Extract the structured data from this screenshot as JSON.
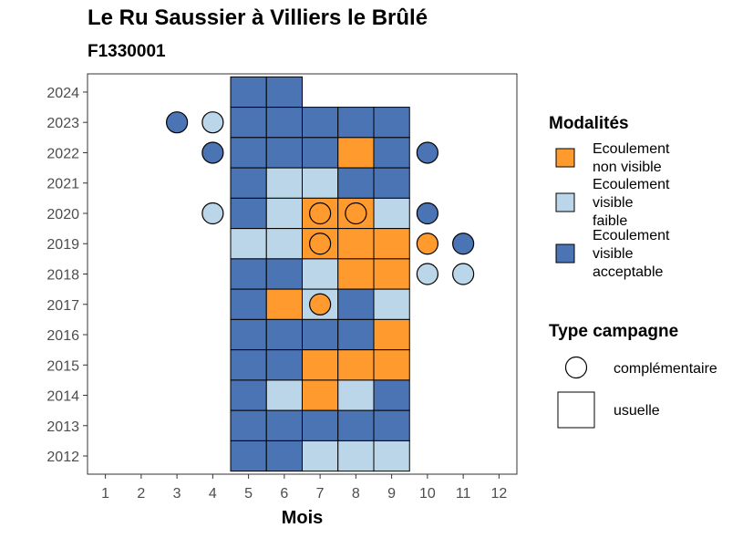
{
  "title": "Le Ru Saussier à Villiers le Brûlé",
  "subtitle": "F1330001",
  "chart_data": {
    "type": "heatmap",
    "title": "Le Ru Saussier à Villiers le Brûlé",
    "subtitle": "F1330001",
    "xlabel": "Mois",
    "ylabel": "",
    "x_ticks": [
      1,
      2,
      3,
      4,
      5,
      6,
      7,
      8,
      9,
      10,
      11,
      12
    ],
    "y_ticks": [
      2012,
      2013,
      2014,
      2015,
      2016,
      2017,
      2018,
      2019,
      2020,
      2021,
      2022,
      2023,
      2024
    ],
    "xlim": [
      0.5,
      12.5
    ],
    "ylim": [
      2011.4,
      2024.6
    ],
    "grid": false,
    "legend_position": "right",
    "colors": {
      "Ecoulement non visible": "#FF9A2E",
      "Ecoulement visible faible": "#BAD6E8",
      "Ecoulement visible acceptable": "#4A74B4"
    },
    "legends": [
      {
        "title": "Modalités",
        "entries": [
          {
            "label": "Ecoulement\nnon visible",
            "value": "Ecoulement non visible",
            "color": "#FF9A2E"
          },
          {
            "label": "Ecoulement\nvisible\nfaible",
            "value": "Ecoulement visible faible",
            "color": "#BAD6E8"
          },
          {
            "label": "Ecoulement\nvisible\nacceptable",
            "value": "Ecoulement visible acceptable",
            "color": "#4A74B4"
          }
        ]
      },
      {
        "title": "Type campagne",
        "entries": [
          {
            "label": "complémentaire",
            "shape": "circle"
          },
          {
            "label": "usuelle",
            "shape": "square"
          }
        ]
      }
    ],
    "usuelle": [
      {
        "year": 2024,
        "months": [
          5,
          6
        ],
        "values": [
          "acc",
          "acc"
        ]
      },
      {
        "year": 2023,
        "months": [
          5,
          6,
          7,
          8,
          9
        ],
        "values": [
          "acc",
          "acc",
          "acc",
          "acc",
          "acc"
        ]
      },
      {
        "year": 2022,
        "months": [
          5,
          6,
          7,
          8,
          9
        ],
        "values": [
          "acc",
          "acc",
          "acc",
          "nv",
          "acc"
        ]
      },
      {
        "year": 2021,
        "months": [
          5,
          6,
          7,
          8,
          9
        ],
        "values": [
          "acc",
          "fai",
          "fai",
          "acc",
          "acc"
        ]
      },
      {
        "year": 2020,
        "months": [
          5,
          6,
          7,
          8,
          9
        ],
        "values": [
          "acc",
          "fai",
          "nv",
          "nv",
          "fai"
        ]
      },
      {
        "year": 2019,
        "months": [
          5,
          6,
          7,
          8,
          9
        ],
        "values": [
          "fai",
          "fai",
          "nv",
          "nv",
          "nv"
        ]
      },
      {
        "year": 2018,
        "months": [
          5,
          6,
          7,
          8,
          9
        ],
        "values": [
          "acc",
          "acc",
          "fai",
          "nv",
          "nv"
        ]
      },
      {
        "year": 2017,
        "months": [
          5,
          6,
          7,
          8,
          9
        ],
        "values": [
          "acc",
          "nv",
          "fai",
          "acc",
          "fai"
        ]
      },
      {
        "year": 2016,
        "months": [
          5,
          6,
          7,
          8,
          9
        ],
        "values": [
          "acc",
          "acc",
          "acc",
          "acc",
          "nv"
        ]
      },
      {
        "year": 2015,
        "months": [
          5,
          6,
          7,
          8,
          9
        ],
        "values": [
          "acc",
          "acc",
          "nv",
          "nv",
          "nv"
        ]
      },
      {
        "year": 2014,
        "months": [
          5,
          6,
          7,
          8,
          9
        ],
        "values": [
          "acc",
          "fai",
          "nv",
          "fai",
          "acc"
        ]
      },
      {
        "year": 2013,
        "months": [
          5,
          6,
          7,
          8,
          9
        ],
        "values": [
          "acc",
          "acc",
          "acc",
          "acc",
          "acc"
        ]
      },
      {
        "year": 2012,
        "months": [
          5,
          6,
          7,
          8,
          9
        ],
        "values": [
          "acc",
          "acc",
          "fai",
          "fai",
          "fai"
        ]
      }
    ],
    "complementaire": [
      {
        "year": 2023,
        "month": 3,
        "value": "acc"
      },
      {
        "year": 2023,
        "month": 4,
        "value": "fai"
      },
      {
        "year": 2022,
        "month": 4,
        "value": "acc"
      },
      {
        "year": 2022,
        "month": 10,
        "value": "acc"
      },
      {
        "year": 2020,
        "month": 4,
        "value": "fai"
      },
      {
        "year": 2020,
        "month": 7,
        "value": "nv"
      },
      {
        "year": 2020,
        "month": 8,
        "value": "nv"
      },
      {
        "year": 2020,
        "month": 10,
        "value": "acc"
      },
      {
        "year": 2019,
        "month": 7,
        "value": "nv"
      },
      {
        "year": 2019,
        "month": 10,
        "value": "nv"
      },
      {
        "year": 2019,
        "month": 11,
        "value": "acc"
      },
      {
        "year": 2018,
        "month": 10,
        "value": "fai"
      },
      {
        "year": 2018,
        "month": 11,
        "value": "fai"
      },
      {
        "year": 2017,
        "month": 7,
        "value": "nv"
      }
    ],
    "value_codes": {
      "nv": "Ecoulement non visible",
      "fai": "Ecoulement visible faible",
      "acc": "Ecoulement visible acceptable"
    }
  }
}
